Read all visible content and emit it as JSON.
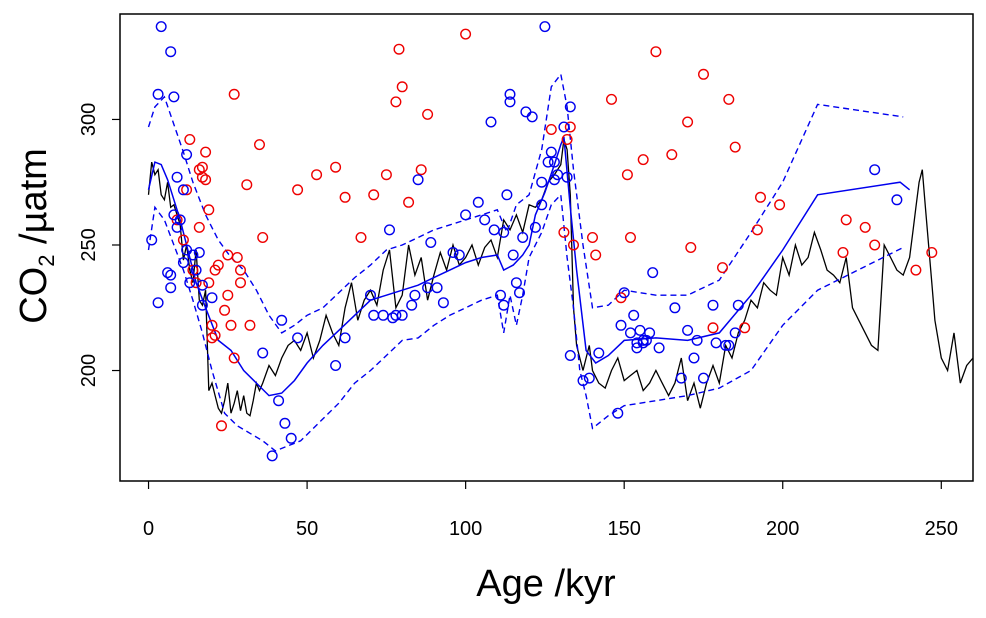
{
  "chart_data": {
    "type": "line",
    "xlabel": "Age /kyr",
    "ylabel": "CO",
    "ylabel_subscript": "2",
    "ylabel_units": " /µatm",
    "xlim": [
      -9,
      260
    ],
    "ylim": [
      156,
      342
    ],
    "x_ticks": [
      0,
      50,
      100,
      150,
      200,
      250
    ],
    "y_ticks": [
      200,
      250,
      300
    ],
    "grid": false,
    "legend": "none",
    "colors": {
      "ice_core": "#000000",
      "fit": "#0000ee",
      "blue_points": "#0000ee",
      "red_points": "#ee0000"
    },
    "series": [
      {
        "style": "solid",
        "color": "#000000",
        "x": [
          0,
          1,
          2,
          3,
          4,
          5,
          6,
          7,
          8,
          9,
          10,
          11,
          12,
          13,
          14,
          15,
          16,
          17,
          18,
          19,
          20,
          21,
          22,
          23,
          24,
          25,
          26,
          27,
          28,
          29,
          30,
          31,
          32,
          33,
          34,
          35,
          36,
          38,
          40,
          42,
          44,
          46,
          48,
          50,
          52,
          54,
          56,
          58,
          60,
          62,
          64,
          66,
          68,
          70,
          72,
          74,
          76,
          78,
          80,
          82,
          84,
          86,
          88,
          90,
          92,
          94,
          96,
          98,
          100,
          102,
          104,
          106,
          108,
          110,
          112,
          114,
          116,
          118,
          120,
          122,
          124,
          126,
          128,
          130,
          131,
          132,
          133,
          134,
          135,
          136,
          137,
          138,
          139,
          140,
          142,
          144,
          146,
          148,
          150,
          152,
          154,
          156,
          158,
          160,
          162,
          164,
          166,
          168,
          170,
          172,
          174,
          176,
          178,
          180,
          182,
          184,
          186,
          188,
          190,
          192,
          194,
          196,
          198,
          200,
          202,
          204,
          206,
          208,
          210,
          212,
          214,
          216,
          218,
          220,
          222,
          224,
          226,
          228,
          230,
          232,
          234,
          236,
          238,
          240,
          241,
          242,
          243,
          244,
          245,
          246,
          247,
          248,
          250,
          252,
          254,
          256,
          258,
          260
        ],
        "y": [
          270,
          283,
          278,
          280,
          270,
          268,
          275,
          265,
          266,
          262,
          258,
          244,
          250,
          240,
          235,
          248,
          228,
          226,
          232,
          192,
          195,
          190,
          185,
          183,
          188,
          195,
          183,
          187,
          192,
          184,
          190,
          183,
          182,
          188,
          195,
          192,
          195,
          202,
          198,
          205,
          210,
          212,
          208,
          215,
          205,
          212,
          222,
          215,
          210,
          225,
          235,
          220,
          228,
          232,
          226,
          240,
          248,
          225,
          230,
          250,
          238,
          245,
          228,
          238,
          247,
          240,
          250,
          242,
          245,
          250,
          242,
          249,
          252,
          245,
          260,
          256,
          262,
          255,
          266,
          265,
          268,
          275,
          278,
          282,
          292,
          288,
          270,
          225,
          210,
          205,
          200,
          205,
          210,
          200,
          195,
          193,
          200,
          205,
          196,
          198,
          200,
          192,
          195,
          200,
          195,
          190,
          195,
          205,
          188,
          195,
          185,
          195,
          202,
          195,
          210,
          205,
          215,
          220,
          228,
          225,
          235,
          232,
          230,
          245,
          238,
          250,
          242,
          245,
          255,
          248,
          240,
          238,
          235,
          245,
          225,
          220,
          215,
          210,
          208,
          250,
          245,
          240,
          238,
          245,
          255,
          265,
          275,
          280,
          265,
          250,
          235,
          220,
          205,
          200,
          215,
          195,
          202,
          205
        ]
      },
      {
        "style": "solid",
        "color": "#0000ee",
        "x": [
          0,
          2,
          4,
          6,
          8,
          10,
          12,
          15,
          18,
          22,
          26,
          30,
          34,
          38,
          42,
          46,
          50,
          55,
          60,
          65,
          70,
          75,
          80,
          85,
          90,
          95,
          100,
          105,
          110,
          112,
          115,
          118,
          120,
          122,
          125,
          128,
          130,
          131,
          133,
          135,
          138,
          141,
          145,
          150,
          160,
          170,
          180,
          190,
          200,
          211,
          237,
          240
        ],
        "y": [
          272,
          283,
          282,
          276,
          268,
          260,
          250,
          235,
          225,
          212,
          208,
          200,
          195,
          190,
          191,
          196,
          203,
          210,
          216,
          222,
          228,
          230,
          232,
          234,
          237,
          240,
          243,
          245,
          246,
          240,
          242,
          246,
          250,
          262,
          271,
          282,
          290,
          293,
          265,
          240,
          208,
          203,
          206,
          212,
          213,
          212,
          215,
          230,
          248,
          270,
          275,
          272
        ]
      },
      {
        "style": "dashed",
        "color": "#0000ee",
        "x": [
          0,
          2,
          5,
          8,
          11,
          14,
          18,
          22,
          26,
          30,
          34,
          38,
          42,
          46,
          50,
          55,
          60,
          65,
          70,
          75,
          80,
          85,
          90,
          95,
          100,
          105,
          110,
          113,
          116,
          120,
          124,
          127,
          130,
          132,
          134,
          137,
          140,
          145,
          150,
          160,
          170,
          180,
          190,
          200,
          211,
          238
        ],
        "y": [
          297,
          305,
          309,
          298,
          287,
          275,
          262,
          252,
          245,
          240,
          232,
          222,
          215,
          218,
          222,
          225,
          231,
          237,
          242,
          248,
          250,
          253,
          256,
          258,
          260,
          262,
          264,
          255,
          266,
          270,
          288,
          313,
          318,
          305,
          280,
          250,
          225,
          226,
          232,
          230,
          230,
          236,
          255,
          275,
          306,
          301
        ]
      },
      {
        "style": "dashed",
        "color": "#0000ee",
        "x": [
          0,
          2,
          5,
          8,
          11,
          14,
          17,
          20,
          24,
          28,
          32,
          36,
          40,
          44,
          48,
          52,
          56,
          60,
          65,
          70,
          75,
          80,
          85,
          90,
          95,
          100,
          105,
          110,
          112,
          114,
          116,
          118,
          120,
          124,
          127,
          130,
          132,
          134,
          136,
          138,
          140,
          145,
          150,
          160,
          170,
          180,
          190,
          200,
          211,
          238
        ],
        "y": [
          248,
          265,
          260,
          250,
          240,
          228,
          215,
          200,
          183,
          178,
          175,
          172,
          168,
          170,
          172,
          177,
          182,
          187,
          195,
          200,
          206,
          212,
          213,
          218,
          222,
          225,
          228,
          230,
          215,
          230,
          218,
          230,
          245,
          255,
          266,
          270,
          245,
          225,
          200,
          190,
          177,
          182,
          186,
          188,
          190,
          193,
          200,
          218,
          232,
          249
        ]
      }
    ],
    "blue_points": {
      "x": [
        1,
        3,
        3,
        4,
        6,
        7,
        7,
        7,
        8,
        8,
        9,
        9,
        10,
        11,
        11,
        12,
        12,
        13,
        14,
        15,
        16,
        17,
        17,
        20,
        36,
        39,
        41,
        42,
        43,
        45,
        47,
        59,
        62,
        70,
        71,
        74,
        76,
        77,
        78,
        80,
        83,
        84,
        85,
        88,
        89,
        91,
        93,
        96,
        98,
        100,
        104,
        106,
        108,
        109,
        111,
        112,
        112,
        113,
        114,
        114,
        115,
        116,
        117,
        118,
        119,
        121,
        122,
        124,
        124,
        125,
        126,
        127,
        128,
        128,
        129,
        131,
        132,
        133,
        133,
        137,
        139,
        142,
        148,
        149,
        150,
        152,
        153,
        154,
        154,
        155,
        156,
        156,
        157,
        158,
        159,
        161,
        166,
        168,
        170,
        172,
        173,
        175,
        178,
        179,
        182,
        183,
        185,
        186,
        229,
        236
      ],
      "y": [
        252,
        227,
        310,
        337,
        239,
        327,
        233,
        238,
        262,
        309,
        257,
        277,
        260,
        243,
        272,
        286,
        248,
        235,
        246,
        240,
        247,
        226,
        234,
        229,
        207,
        166,
        188,
        220,
        179,
        173,
        213,
        202,
        213,
        230,
        222,
        222,
        256,
        221,
        222,
        222,
        226,
        230,
        276,
        233,
        251,
        233,
        227,
        247,
        246,
        262,
        267,
        260,
        299,
        256,
        230,
        255,
        226,
        270,
        310,
        307,
        246,
        235,
        231,
        253,
        303,
        301,
        257,
        266,
        275,
        337,
        283,
        287,
        283,
        276,
        278,
        297,
        277,
        305,
        206,
        196,
        197,
        207,
        183,
        218,
        231,
        215,
        222,
        211,
        209,
        216,
        212,
        211,
        212,
        215,
        239,
        209,
        225,
        197,
        216,
        205,
        212,
        197,
        226,
        211,
        210,
        210,
        215,
        226,
        280,
        268
      ]
    },
    "red_points": {
      "x": [
        9,
        11,
        12,
        13,
        14,
        15,
        16,
        16,
        17,
        17,
        18,
        18,
        19,
        19,
        20,
        20,
        21,
        21,
        22,
        23,
        24,
        25,
        25,
        26,
        27,
        27,
        28,
        29,
        29,
        31,
        32,
        35,
        36,
        47,
        53,
        59,
        62,
        67,
        71,
        75,
        78,
        79,
        80,
        82,
        86,
        88,
        100,
        127,
        131,
        132,
        133,
        134,
        140,
        141,
        146,
        149,
        151,
        152,
        156,
        160,
        165,
        170,
        171,
        175,
        178,
        181,
        183,
        185,
        188,
        192,
        193,
        199,
        219,
        220,
        226,
        229,
        242,
        247
      ],
      "y": [
        260,
        252,
        272,
        292,
        240,
        235,
        257,
        280,
        281,
        277,
        276,
        287,
        264,
        235,
        213,
        218,
        214,
        240,
        242,
        178,
        224,
        246,
        230,
        218,
        310,
        205,
        245,
        235,
        240,
        274,
        218,
        290,
        253,
        272,
        278,
        281,
        269,
        253,
        270,
        278,
        307,
        328,
        313,
        267,
        280,
        302,
        334,
        296,
        255,
        292,
        297,
        250,
        253,
        246,
        308,
        229,
        278,
        253,
        284,
        327,
        286,
        299,
        249,
        318,
        217,
        241,
        308,
        289,
        217,
        256,
        269,
        266,
        247,
        260,
        257,
        250,
        240,
        247
      ]
    }
  }
}
